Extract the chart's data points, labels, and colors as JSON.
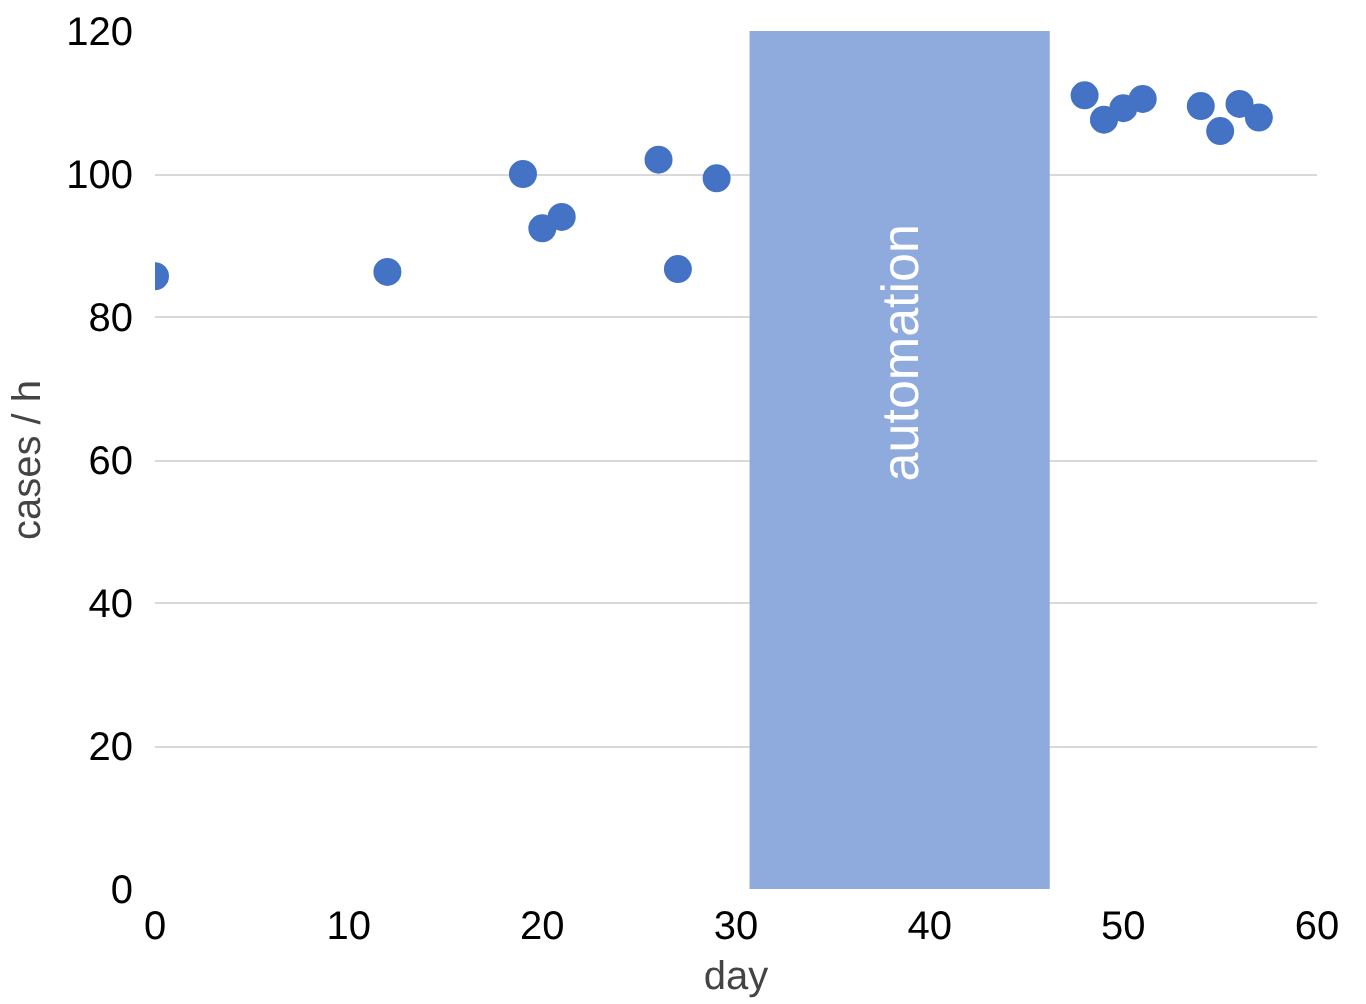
{
  "chart_data": {
    "type": "scatter",
    "xlabel": "day",
    "ylabel": "cases / h",
    "x": [
      0,
      12,
      19,
      20,
      21,
      26,
      27,
      29,
      48,
      49,
      50,
      51,
      54,
      55,
      56,
      57
    ],
    "series": [
      {
        "color": "#4472c4",
        "values": [
          85.7,
          86.3,
          100,
          92.4,
          94,
          102,
          86.7,
          99.4,
          111,
          107.6,
          109.2,
          110.5,
          109.5,
          106,
          109.8,
          107.9
        ]
      }
    ],
    "xlim": [
      0,
      60
    ],
    "xticks": [
      0,
      10,
      20,
      30,
      40,
      50,
      60
    ],
    "ylim": [
      0,
      120
    ],
    "yticks": [
      0,
      20,
      40,
      60,
      80,
      100,
      120
    ],
    "bands": [
      {
        "axis": "x",
        "from": 30.7,
        "to": 46.2,
        "label": "automation",
        "color": "#8faadc"
      }
    ],
    "grid": "y",
    "marker": "circle"
  }
}
